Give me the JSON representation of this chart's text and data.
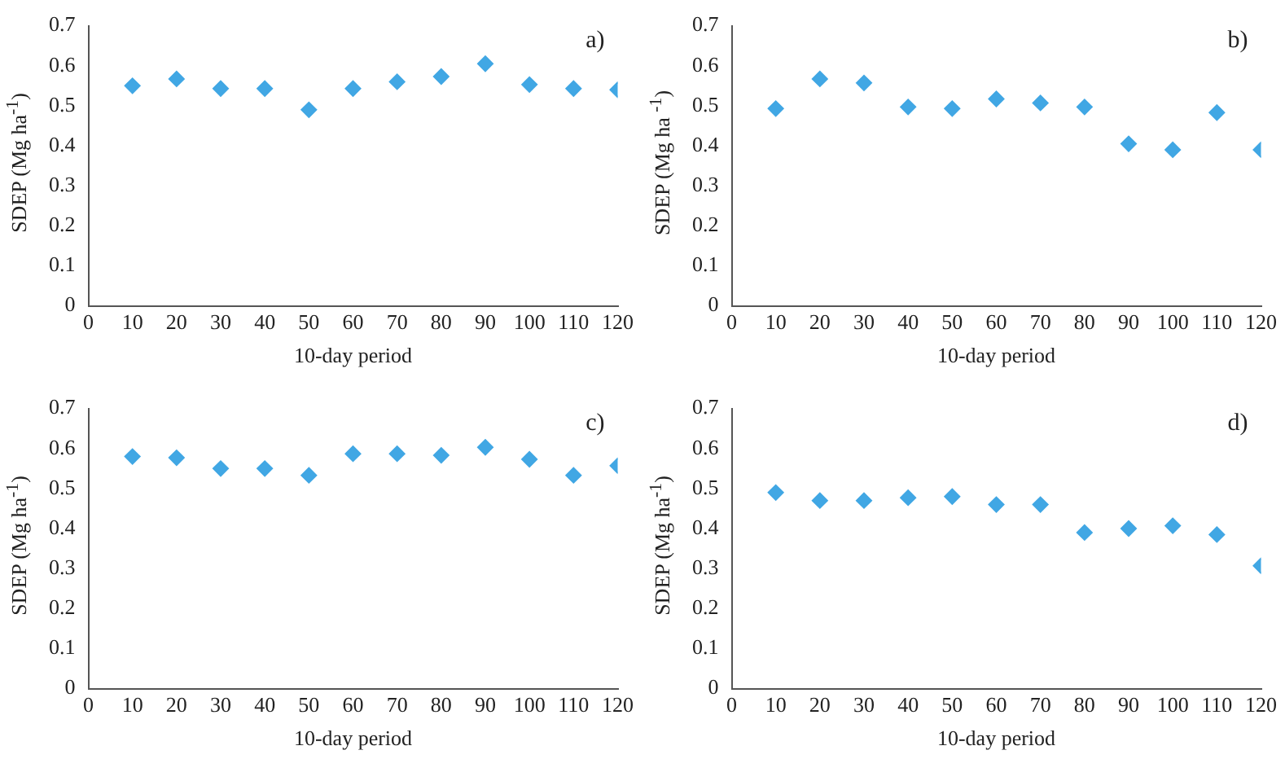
{
  "chart_data": [
    {
      "type": "scatter",
      "xlabel": "10-day period",
      "ylabel": "SDEP (Mg ha$^{-1}$)",
      "annotations": [
        "a)"
      ],
      "marker": "diamond",
      "color": "#41a7e4",
      "x": [
        10,
        20,
        30,
        40,
        50,
        60,
        70,
        80,
        90,
        100,
        110,
        120
      ],
      "values": [
        0.55,
        0.567,
        0.543,
        0.543,
        0.49,
        0.543,
        0.56,
        0.573,
        0.605,
        0.553,
        0.543,
        0.54
      ],
      "xlim": [
        0,
        120
      ],
      "xticks": [
        0,
        10,
        20,
        30,
        40,
        50,
        60,
        70,
        80,
        90,
        100,
        110,
        120
      ],
      "ylim": [
        0,
        0.7
      ],
      "yticks": [
        0,
        0.1,
        0.2,
        0.3,
        0.4,
        0.5,
        0.6,
        0.7
      ]
    },
    {
      "type": "scatter",
      "xlabel": "10-day period",
      "ylabel": "SDEP (Mg ha $^{-1}$)",
      "annotations": [
        "b)"
      ],
      "marker": "diamond",
      "color": "#41a7e4",
      "x": [
        10,
        20,
        30,
        40,
        50,
        60,
        70,
        80,
        90,
        100,
        110,
        120
      ],
      "values": [
        0.493,
        0.567,
        0.557,
        0.497,
        0.493,
        0.517,
        0.507,
        0.497,
        0.405,
        0.39,
        0.483,
        0.39
      ],
      "xlim": [
        0,
        120
      ],
      "xticks": [
        0,
        10,
        20,
        30,
        40,
        50,
        60,
        70,
        80,
        90,
        100,
        110,
        120
      ],
      "ylim": [
        0,
        0.7
      ],
      "yticks": [
        0,
        0.1,
        0.2,
        0.3,
        0.4,
        0.5,
        0.6,
        0.7
      ]
    },
    {
      "type": "scatter",
      "xlabel": "10-day period",
      "ylabel": "SDEP (Mg ha$^{-1}$)",
      "annotations": [
        "c)"
      ],
      "marker": "diamond",
      "color": "#41a7e4",
      "x": [
        10,
        20,
        30,
        40,
        50,
        60,
        70,
        80,
        90,
        100,
        110,
        120
      ],
      "values": [
        0.58,
        0.577,
        0.55,
        0.55,
        0.533,
        0.587,
        0.587,
        0.583,
        0.603,
        0.573,
        0.533,
        0.557
      ],
      "xlim": [
        0,
        120
      ],
      "xticks": [
        0,
        10,
        20,
        30,
        40,
        50,
        60,
        70,
        80,
        90,
        100,
        110,
        120
      ],
      "ylim": [
        0,
        0.7
      ],
      "yticks": [
        0,
        0.1,
        0.2,
        0.3,
        0.4,
        0.5,
        0.6,
        0.7
      ]
    },
    {
      "type": "scatter",
      "xlabel": "10-day period",
      "ylabel": "SDEP (Mg ha$^{-1}$)",
      "annotations": [
        "d)"
      ],
      "marker": "diamond",
      "color": "#41a7e4",
      "x": [
        10,
        20,
        30,
        40,
        50,
        60,
        70,
        80,
        90,
        100,
        110,
        120
      ],
      "values": [
        0.49,
        0.47,
        0.47,
        0.477,
        0.48,
        0.46,
        0.46,
        0.39,
        0.4,
        0.407,
        0.385,
        0.307
      ],
      "xlim": [
        0,
        120
      ],
      "xticks": [
        0,
        10,
        20,
        30,
        40,
        50,
        60,
        70,
        80,
        90,
        100,
        110,
        120
      ],
      "ylim": [
        0,
        0.7
      ],
      "yticks": [
        0,
        0.1,
        0.2,
        0.3,
        0.4,
        0.5,
        0.6,
        0.7
      ]
    }
  ]
}
